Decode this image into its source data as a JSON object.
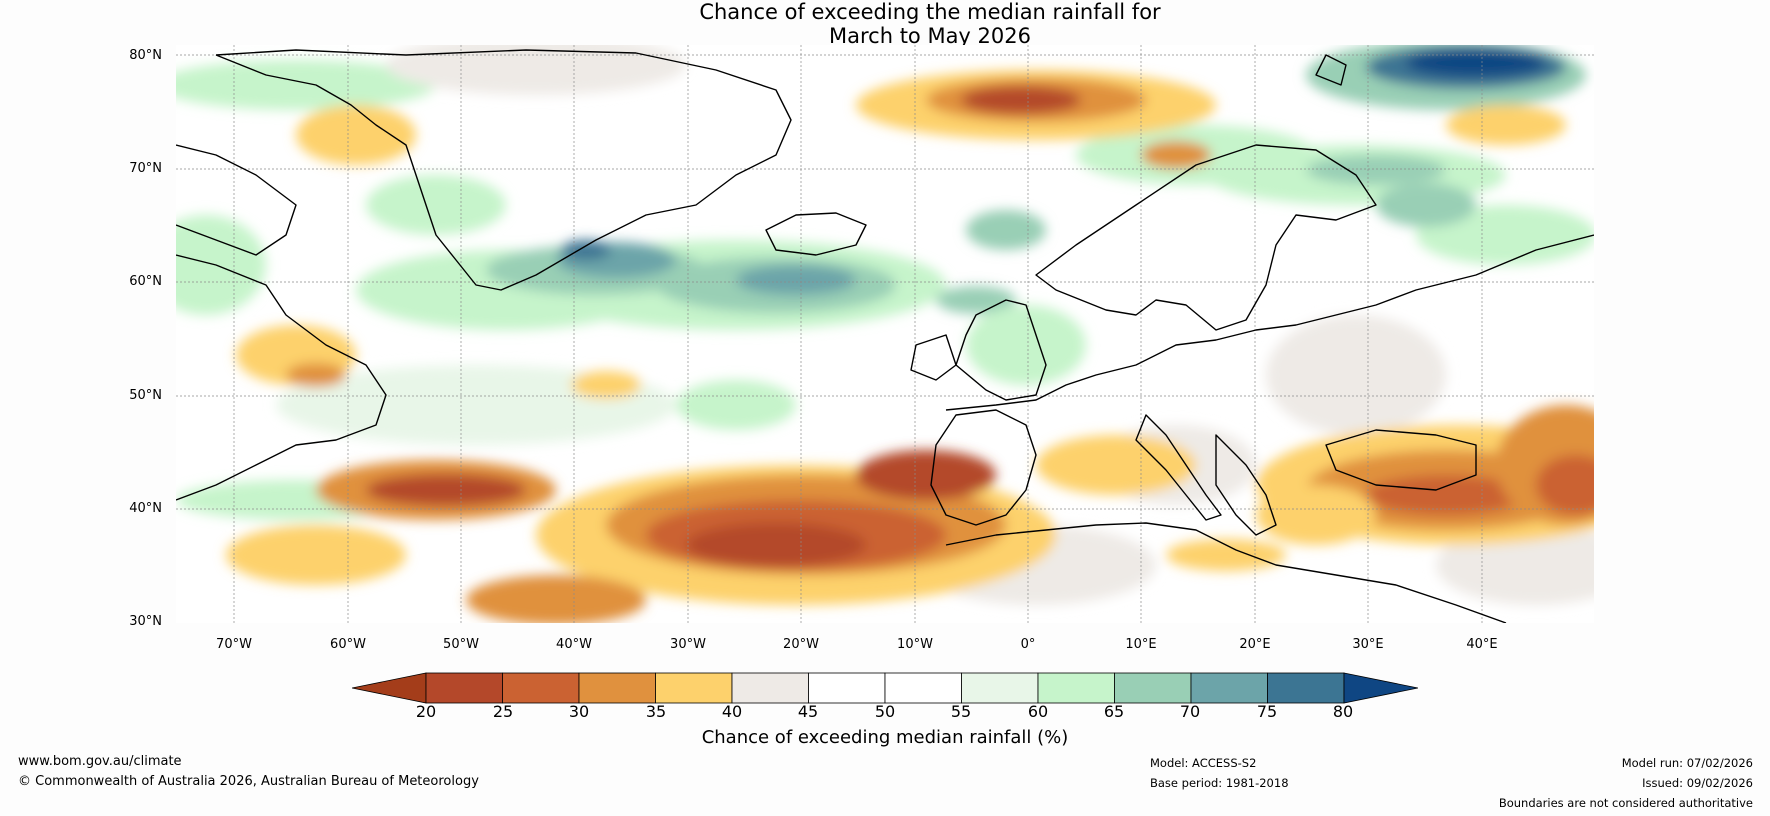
{
  "title": {
    "line1": "Chance of exceeding the median rainfall for",
    "line2": "March to May 2026"
  },
  "map": {
    "lat_labels": [
      "80°N",
      "70°N",
      "60°N",
      "50°N",
      "40°N",
      "30°N"
    ],
    "lon_labels": [
      "70°W",
      "60°W",
      "50°W",
      "40°W",
      "30°W",
      "20°W",
      "10°W",
      "0°",
      "10°E",
      "20°E",
      "30°E",
      "40°E"
    ]
  },
  "colorbar": {
    "ticks": [
      "20",
      "25",
      "30",
      "35",
      "40",
      "45",
      "50",
      "55",
      "60",
      "65",
      "70",
      "75",
      "80"
    ],
    "colors": [
      "#a43d1a",
      "#b4482a",
      "#cb6232",
      "#e0913e",
      "#fdd16c",
      "#eeeae6",
      "#ffffff",
      "#ffffff",
      "#e8f6e8",
      "#c6f4cb",
      "#99cfb5",
      "#6ca4a9",
      "#3c7593",
      "#0f4683"
    ],
    "label": "Chance of exceeding median rainfall (%)"
  },
  "footer": {
    "website": "www.bom.gov.au/climate",
    "copyright": "© Commonwealth of Australia 2026, Australian Bureau of Meteorology",
    "model": "Model: ACCESS-S2",
    "base_period": "Base period: 1981-2018",
    "model_run": "Model run: 07/02/2026",
    "issued": "Issued: 09/02/2026",
    "disclaimer": "Boundaries are not considered authoritative"
  }
}
